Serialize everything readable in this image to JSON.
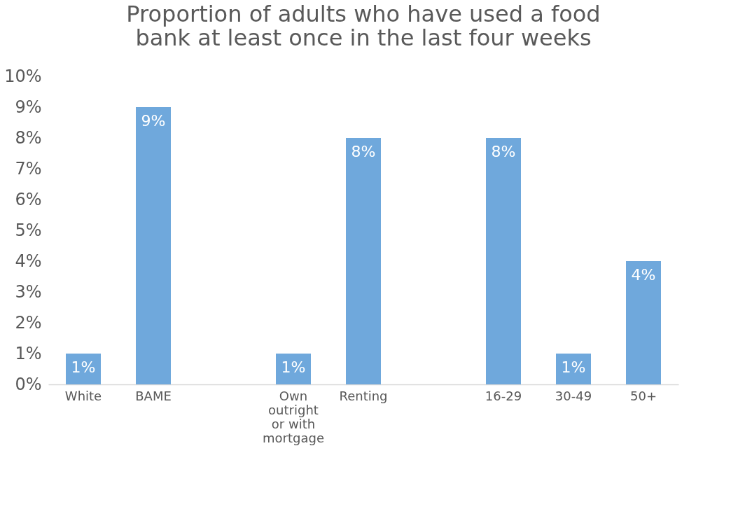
{
  "chart_data": {
    "type": "bar",
    "title": [
      "Proportion of adults who have used a food",
      "bank at least once in the last four weeks"
    ],
    "categories": [
      "White",
      "BAME",
      null,
      "Own outright or with mortgage",
      "Renting",
      null,
      "16-29",
      "30-49",
      "50+"
    ],
    "values": [
      1,
      9,
      null,
      1,
      8,
      null,
      8,
      1,
      4
    ],
    "value_labels": [
      "1%",
      "9%",
      null,
      "1%",
      "8%",
      null,
      "8%",
      "1%",
      "4%"
    ],
    "color": "#6fa8dc",
    "ylim": [
      0,
      10
    ],
    "yticks": [
      {
        "value": 0,
        "label": "0%"
      },
      {
        "value": 1,
        "label": "1%"
      },
      {
        "value": 2,
        "label": "2%"
      },
      {
        "value": 3,
        "label": "3%"
      },
      {
        "value": 4,
        "label": "4%"
      },
      {
        "value": 5,
        "label": "5%"
      },
      {
        "value": 6,
        "label": "6%"
      },
      {
        "value": 7,
        "label": "7%"
      },
      {
        "value": 8,
        "label": "8%"
      },
      {
        "value": 9,
        "label": "9%"
      },
      {
        "value": 10,
        "label": "10%"
      }
    ],
    "grid": false
  }
}
